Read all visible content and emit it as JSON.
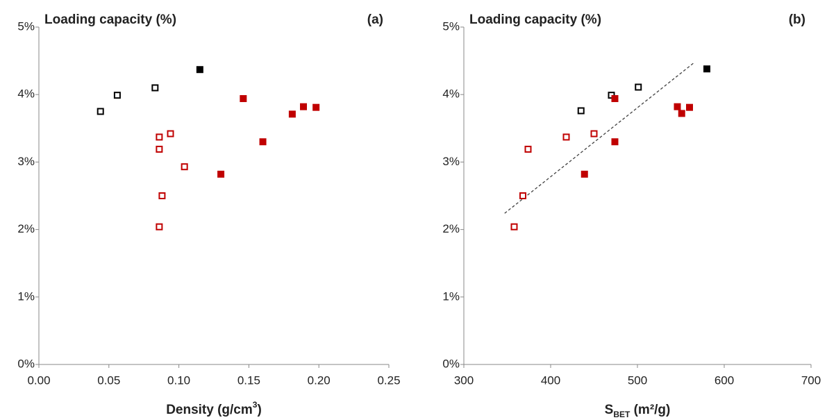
{
  "chart_data": [
    {
      "type": "scatter",
      "title": "Loading capacity (%)",
      "panel": "(a)",
      "x_label": [
        "Density (g/cm",
        "3",
        ")"
      ],
      "xlim": [
        0,
        0.25
      ],
      "xticks": [
        {
          "value": 0,
          "label": "0.00"
        },
        0.05,
        {
          "value": 0.1,
          "label": "0.10"
        },
        0.15,
        {
          "value": 0.2,
          "label": "0.20"
        },
        0.25
      ],
      "ylim": [
        0,
        5
      ],
      "yticks": [
        {
          "value": 0,
          "label": "0%"
        },
        {
          "value": 1,
          "label": "1%"
        },
        {
          "value": 2,
          "label": "2%"
        },
        {
          "value": 3,
          "label": "3%"
        },
        {
          "value": 4,
          "label": "4%"
        },
        {
          "value": 5,
          "label": "5%"
        }
      ],
      "series": [
        {
          "color": "#000000",
          "filled": false,
          "x": [
            0.044,
            0.056,
            0.083
          ],
          "values": [
            3.75,
            3.99,
            4.1
          ]
        },
        {
          "color": "#000000",
          "filled": true,
          "x": [
            0.115
          ],
          "values": [
            4.37
          ]
        },
        {
          "color": "#c00000",
          "filled": false,
          "x": [
            0.086,
            0.094,
            0.086,
            0.104,
            0.088,
            0.086
          ],
          "values": [
            3.37,
            3.42,
            3.19,
            2.93,
            2.5,
            2.04
          ]
        },
        {
          "color": "#c00000",
          "filled": true,
          "x": [
            0.13,
            0.146,
            0.16,
            0.181,
            0.189,
            0.198
          ],
          "values": [
            2.82,
            3.94,
            3.3,
            3.71,
            3.82,
            3.81
          ]
        }
      ]
    },
    {
      "type": "scatter",
      "title": "Loading capacity (%)",
      "panel": "(b)",
      "x_label": [
        "S",
        "BET",
        " (m²/g)"
      ],
      "xlim": [
        300,
        700
      ],
      "xticks": [
        300,
        400,
        500,
        600,
        700
      ],
      "ylim": [
        0,
        5
      ],
      "yticks": [
        {
          "value": 0,
          "label": "0%"
        },
        {
          "value": 1,
          "label": "1%"
        },
        {
          "value": 2,
          "label": "2%"
        },
        {
          "value": 3,
          "label": "3%"
        },
        {
          "value": 4,
          "label": "4%"
        },
        {
          "value": 5,
          "label": "5%"
        }
      ],
      "series": [
        {
          "color": "#000000",
          "filled": false,
          "x": [
            435,
            470,
            501
          ],
          "values": [
            3.76,
            3.99,
            4.11
          ]
        },
        {
          "color": "#000000",
          "filled": true,
          "x": [
            580
          ],
          "values": [
            4.38
          ]
        },
        {
          "color": "#c00000",
          "filled": false,
          "x": [
            358,
            368,
            374,
            418,
            450
          ],
          "values": [
            2.04,
            2.5,
            3.19,
            3.37,
            3.42
          ]
        },
        {
          "color": "#c00000",
          "filled": true,
          "x": [
            439,
            474,
            474,
            546,
            551,
            560
          ],
          "values": [
            2.82,
            3.94,
            3.3,
            3.82,
            3.72,
            3.81
          ]
        }
      ],
      "trend": {
        "color": "#404040",
        "x": [
          347,
          566
        ],
        "values": [
          2.24,
          4.48
        ]
      }
    }
  ]
}
